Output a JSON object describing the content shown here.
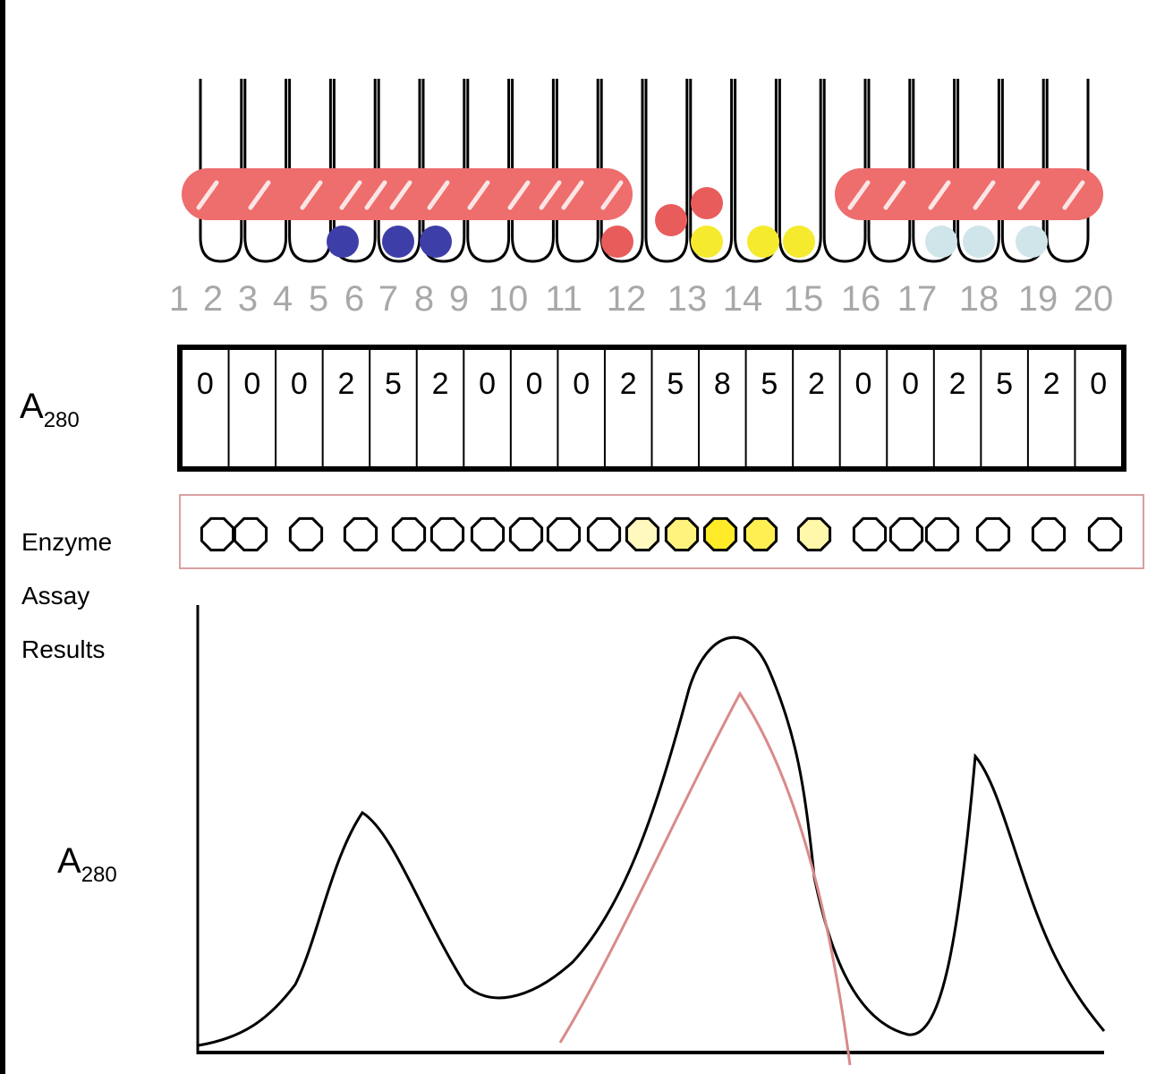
{
  "labels": {
    "a280_top_main": "A",
    "a280_top_sub": "280",
    "enzyme_line1": "Enzyme",
    "enzyme_line2": "Assay",
    "enzyme_line3": "Results",
    "a280_bottom_main": "A",
    "a280_bottom_sub": "280"
  },
  "tube_numbers": [
    "1",
    "2",
    "3",
    "4",
    "5",
    "6",
    "7",
    "8",
    "9",
    "10",
    "11",
    "12",
    "13",
    "14",
    "15",
    "16",
    "17",
    "18",
    "19",
    "20"
  ],
  "a280_values": [
    "0",
    "0",
    "0",
    "2",
    "5",
    "2",
    "0",
    "0",
    "0",
    "2",
    "5",
    "8",
    "5",
    "2",
    "0",
    "0",
    "2",
    "5",
    "2",
    "0"
  ],
  "enzyme_levels": [
    0,
    0,
    0,
    0,
    0,
    0,
    0,
    0,
    0,
    0,
    0.3,
    0.6,
    1,
    0.8,
    0.4,
    0,
    0,
    0,
    0,
    0,
    0,
    0
  ],
  "colors": {
    "band": "#ee6d6d",
    "blue_bead": "#3e3ea8",
    "red_bead": "#e85c5c",
    "yellow_bead": "#f5ea2e",
    "lightblue_bead": "#cfe5ea",
    "enzyme_box_border": "#d9a0a0",
    "enzyme_curve": "#d98a8a"
  }
}
